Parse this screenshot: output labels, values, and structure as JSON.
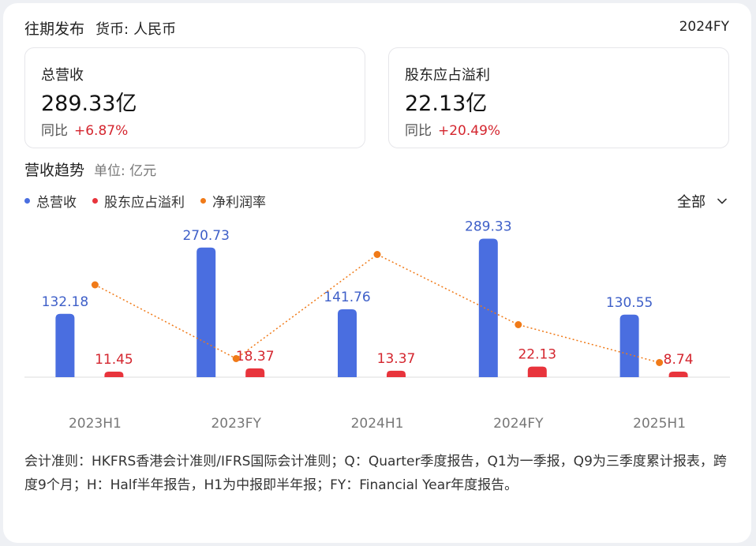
{
  "header": {
    "title": "往期发布",
    "currency_label": "货币:",
    "currency_value": "人民币",
    "period": "2024FY"
  },
  "metrics": [
    {
      "label": "总营收",
      "value": "289.33亿",
      "yoy_label": "同比",
      "yoy_value": "+6.87%"
    },
    {
      "label": "股东应占溢利",
      "value": "22.13亿",
      "yoy_label": "同比",
      "yoy_value": "+20.49%"
    }
  ],
  "section": {
    "title": "营收趋势",
    "unit": "单位: 亿元"
  },
  "legend": [
    {
      "name": "总营收",
      "color": "#4a6ee0"
    },
    {
      "name": "股东应占溢利",
      "color": "#e8343c"
    },
    {
      "name": "净利润率",
      "color": "#f07a18"
    }
  ],
  "filter": {
    "label": "全部",
    "icon": "chevron-down-icon"
  },
  "chart_data": {
    "type": "bar",
    "categories": [
      "2023H1",
      "2023FY",
      "2024H1",
      "2024FY",
      "2025H1"
    ],
    "series": [
      {
        "name": "总营收",
        "type": "bar",
        "color": "#4a6ee0",
        "values": [
          132.18,
          270.73,
          141.76,
          289.33,
          130.55
        ]
      },
      {
        "name": "股东应占溢利",
        "type": "bar",
        "color": "#e8343c",
        "values": [
          11.45,
          18.37,
          13.37,
          22.13,
          8.74
        ]
      },
      {
        "name": "净利润率",
        "type": "line",
        "color": "#f07a18",
        "values": [
          8.66,
          6.79,
          9.43,
          7.65,
          6.69
        ]
      }
    ],
    "ylim": [
      0,
      300
    ],
    "line_ylim": [
      6.4,
      9.8
    ],
    "grid": false,
    "legend_position": "top-left"
  },
  "note": "会计准则：HKFRS香港会计准则/IFRS国际会计准则；Q：Quarter季度报告，Q1为一季报，Q9为三季度累计报表，跨度9个月；H：Half半年报告，H1为中报即半年报；FY：Financial Year年度报告。"
}
